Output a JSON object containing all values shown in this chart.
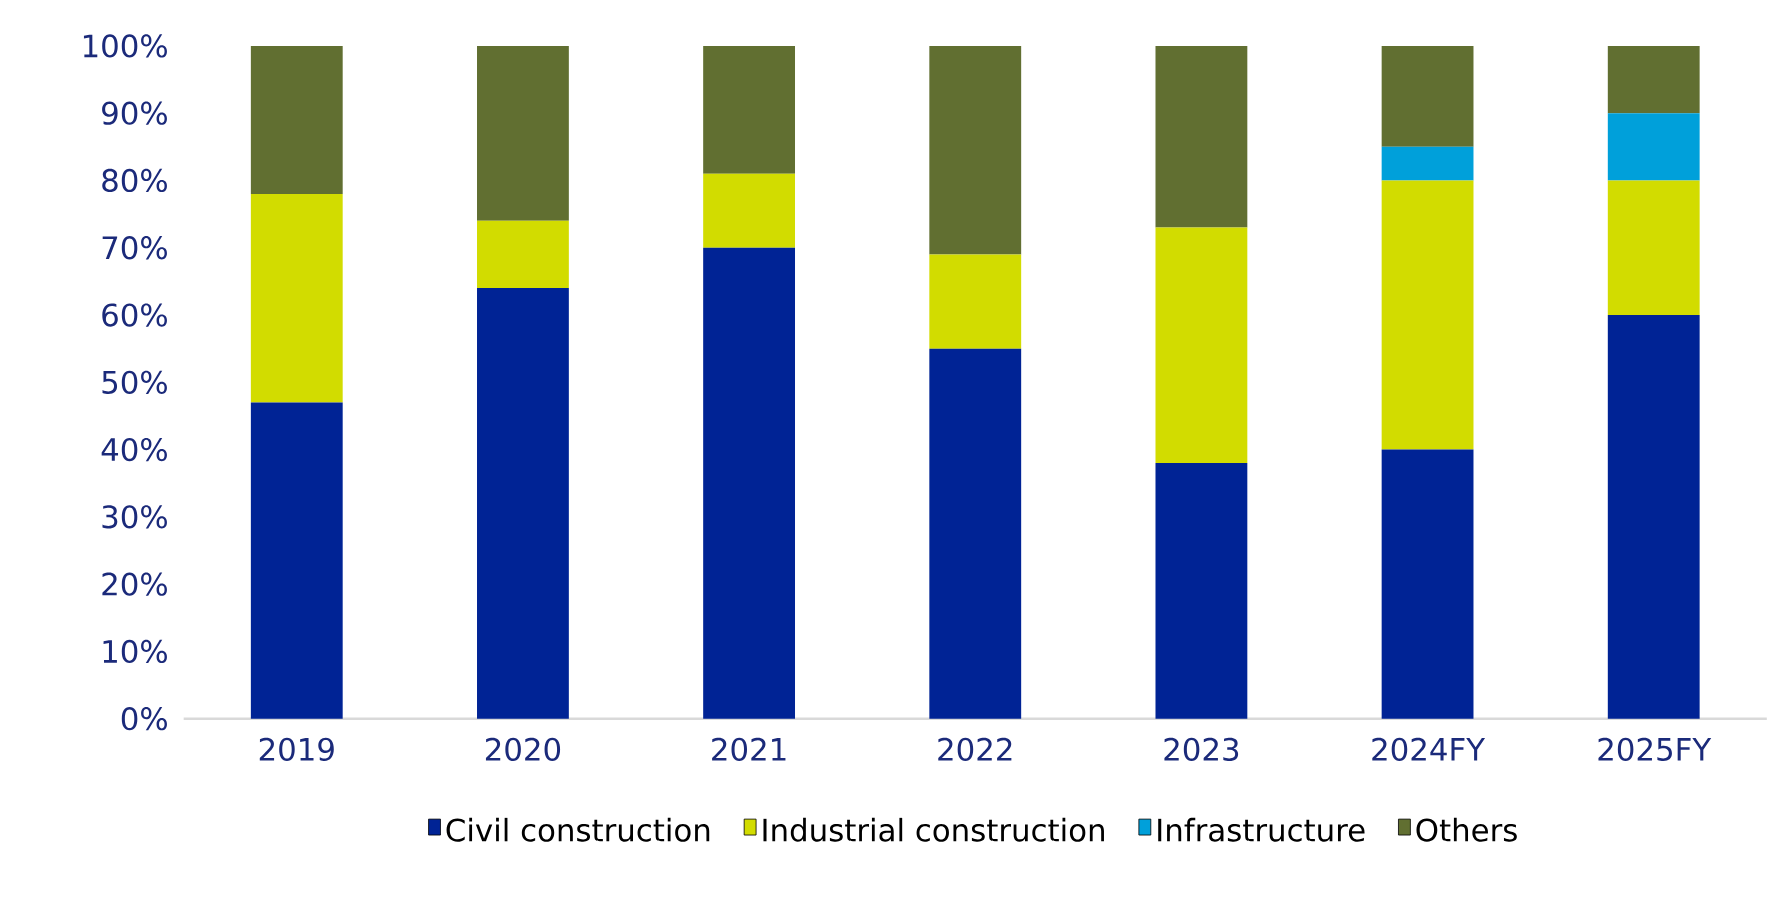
{
  "chart_data": {
    "type": "bar",
    "stacked": true,
    "categories": [
      "2019",
      "2020",
      "2021",
      "2022",
      "2023",
      "2024FY",
      "2025FY"
    ],
    "series": [
      {
        "name": "Civil construction",
        "color": "#002395",
        "values": [
          47,
          64,
          70,
          55,
          38,
          40,
          60
        ]
      },
      {
        "name": "Industrial construction",
        "color": "#d2dc00",
        "values": [
          31,
          10,
          11,
          14,
          35,
          40,
          20
        ]
      },
      {
        "name": "Infrastructure",
        "color": "#00a0da",
        "values": [
          0,
          0,
          0,
          0,
          0,
          5,
          10
        ]
      },
      {
        "name": "Others",
        "color": "#616f31",
        "values": [
          22,
          26,
          19,
          31,
          27,
          15,
          10
        ]
      }
    ],
    "ylim": [
      0,
      100
    ],
    "yticks": [
      {
        "value": 0,
        "label": "0%"
      },
      {
        "value": 10,
        "label": "10%"
      },
      {
        "value": 20,
        "label": "20%"
      },
      {
        "value": 30,
        "label": "30%"
      },
      {
        "value": 40,
        "label": "40%"
      },
      {
        "value": 50,
        "label": "50%"
      },
      {
        "value": 60,
        "label": "60%"
      },
      {
        "value": 70,
        "label": "70%"
      },
      {
        "value": 80,
        "label": "80%"
      },
      {
        "value": 90,
        "label": "90%"
      },
      {
        "value": 100,
        "label": "100%"
      }
    ],
    "grid": false,
    "legend": "bottom"
  }
}
